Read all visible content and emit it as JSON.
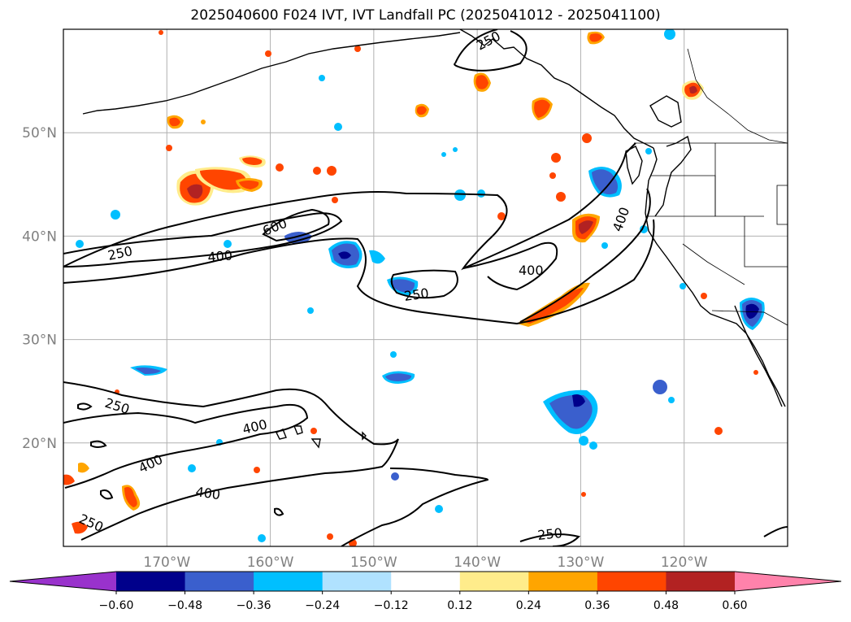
{
  "title": "2025040600 F024 IVT, IVT Landfall PC (2025041012 - 2025041100)",
  "map": {
    "lon_range": [
      -180,
      -110
    ],
    "lat_range": [
      10,
      60
    ],
    "lat_ticks": [
      {
        "value": 50,
        "label": "50°N"
      },
      {
        "value": 40,
        "label": "40°N"
      },
      {
        "value": 30,
        "label": "30°N"
      },
      {
        "value": 20,
        "label": "20°N"
      }
    ],
    "lon_ticks": [
      {
        "value": -170,
        "label": "170°W"
      },
      {
        "value": -160,
        "label": "160°W"
      },
      {
        "value": -150,
        "label": "150°W"
      },
      {
        "value": -140,
        "label": "140°W"
      },
      {
        "value": -130,
        "label": "130°W"
      },
      {
        "value": -120,
        "label": "120°W"
      }
    ],
    "grid": true,
    "contour_labels": [
      "250",
      "400",
      "600",
      "400",
      "250",
      "250",
      "400",
      "250",
      "400",
      "400",
      "400",
      "250",
      "250",
      "250",
      "400"
    ]
  },
  "colorbar": {
    "ticks": [
      "−0.60",
      "−0.48",
      "−0.36",
      "−0.24",
      "−0.12",
      "0.12",
      "0.24",
      "0.36",
      "0.48",
      "0.60"
    ],
    "colors": [
      "#9932CC",
      "#00008B",
      "#3A5FCD",
      "#00BFFF",
      "#B0E2FF",
      "#FFFFFF",
      "#FFEC8B",
      "#FFA500",
      "#FF4500",
      "#B22222",
      "#FF82AB"
    ]
  },
  "chart_data": {
    "type": "heatmap",
    "title": "2025040600 F024 IVT, IVT Landfall PC (2025041012 - 2025041100)",
    "xlabel": "",
    "ylabel": "",
    "x_range": [
      -180,
      -110
    ],
    "y_range": [
      10,
      60
    ],
    "contour_levels": [
      250,
      400,
      600
    ],
    "colorbar_levels": [
      -0.6,
      -0.48,
      -0.36,
      -0.24,
      -0.12,
      0.12,
      0.24,
      0.36,
      0.48,
      0.6
    ]
  }
}
